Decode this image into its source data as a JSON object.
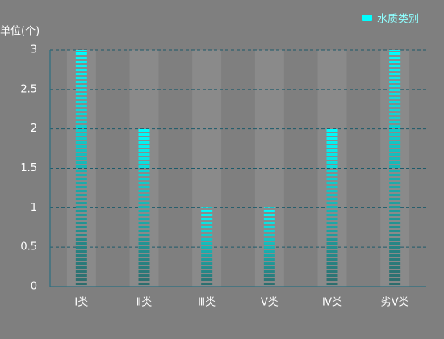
{
  "chart_data": {
    "type": "bar",
    "y_axis_label": "单位(个)",
    "categories": [
      "Ⅰ类",
      "Ⅱ类",
      "Ⅲ类",
      "Ⅴ类",
      "Ⅳ类",
      "劣Ⅴ类"
    ],
    "series": [
      {
        "name": "水质类别",
        "color": "#00ffff",
        "values": [
          3,
          2,
          1,
          1,
          2,
          3
        ]
      }
    ],
    "ylim": [
      0,
      3
    ],
    "yticks": [
      0,
      0.5,
      1,
      1.5,
      2,
      2.5,
      3
    ],
    "grid": true,
    "legend": "top-right"
  }
}
